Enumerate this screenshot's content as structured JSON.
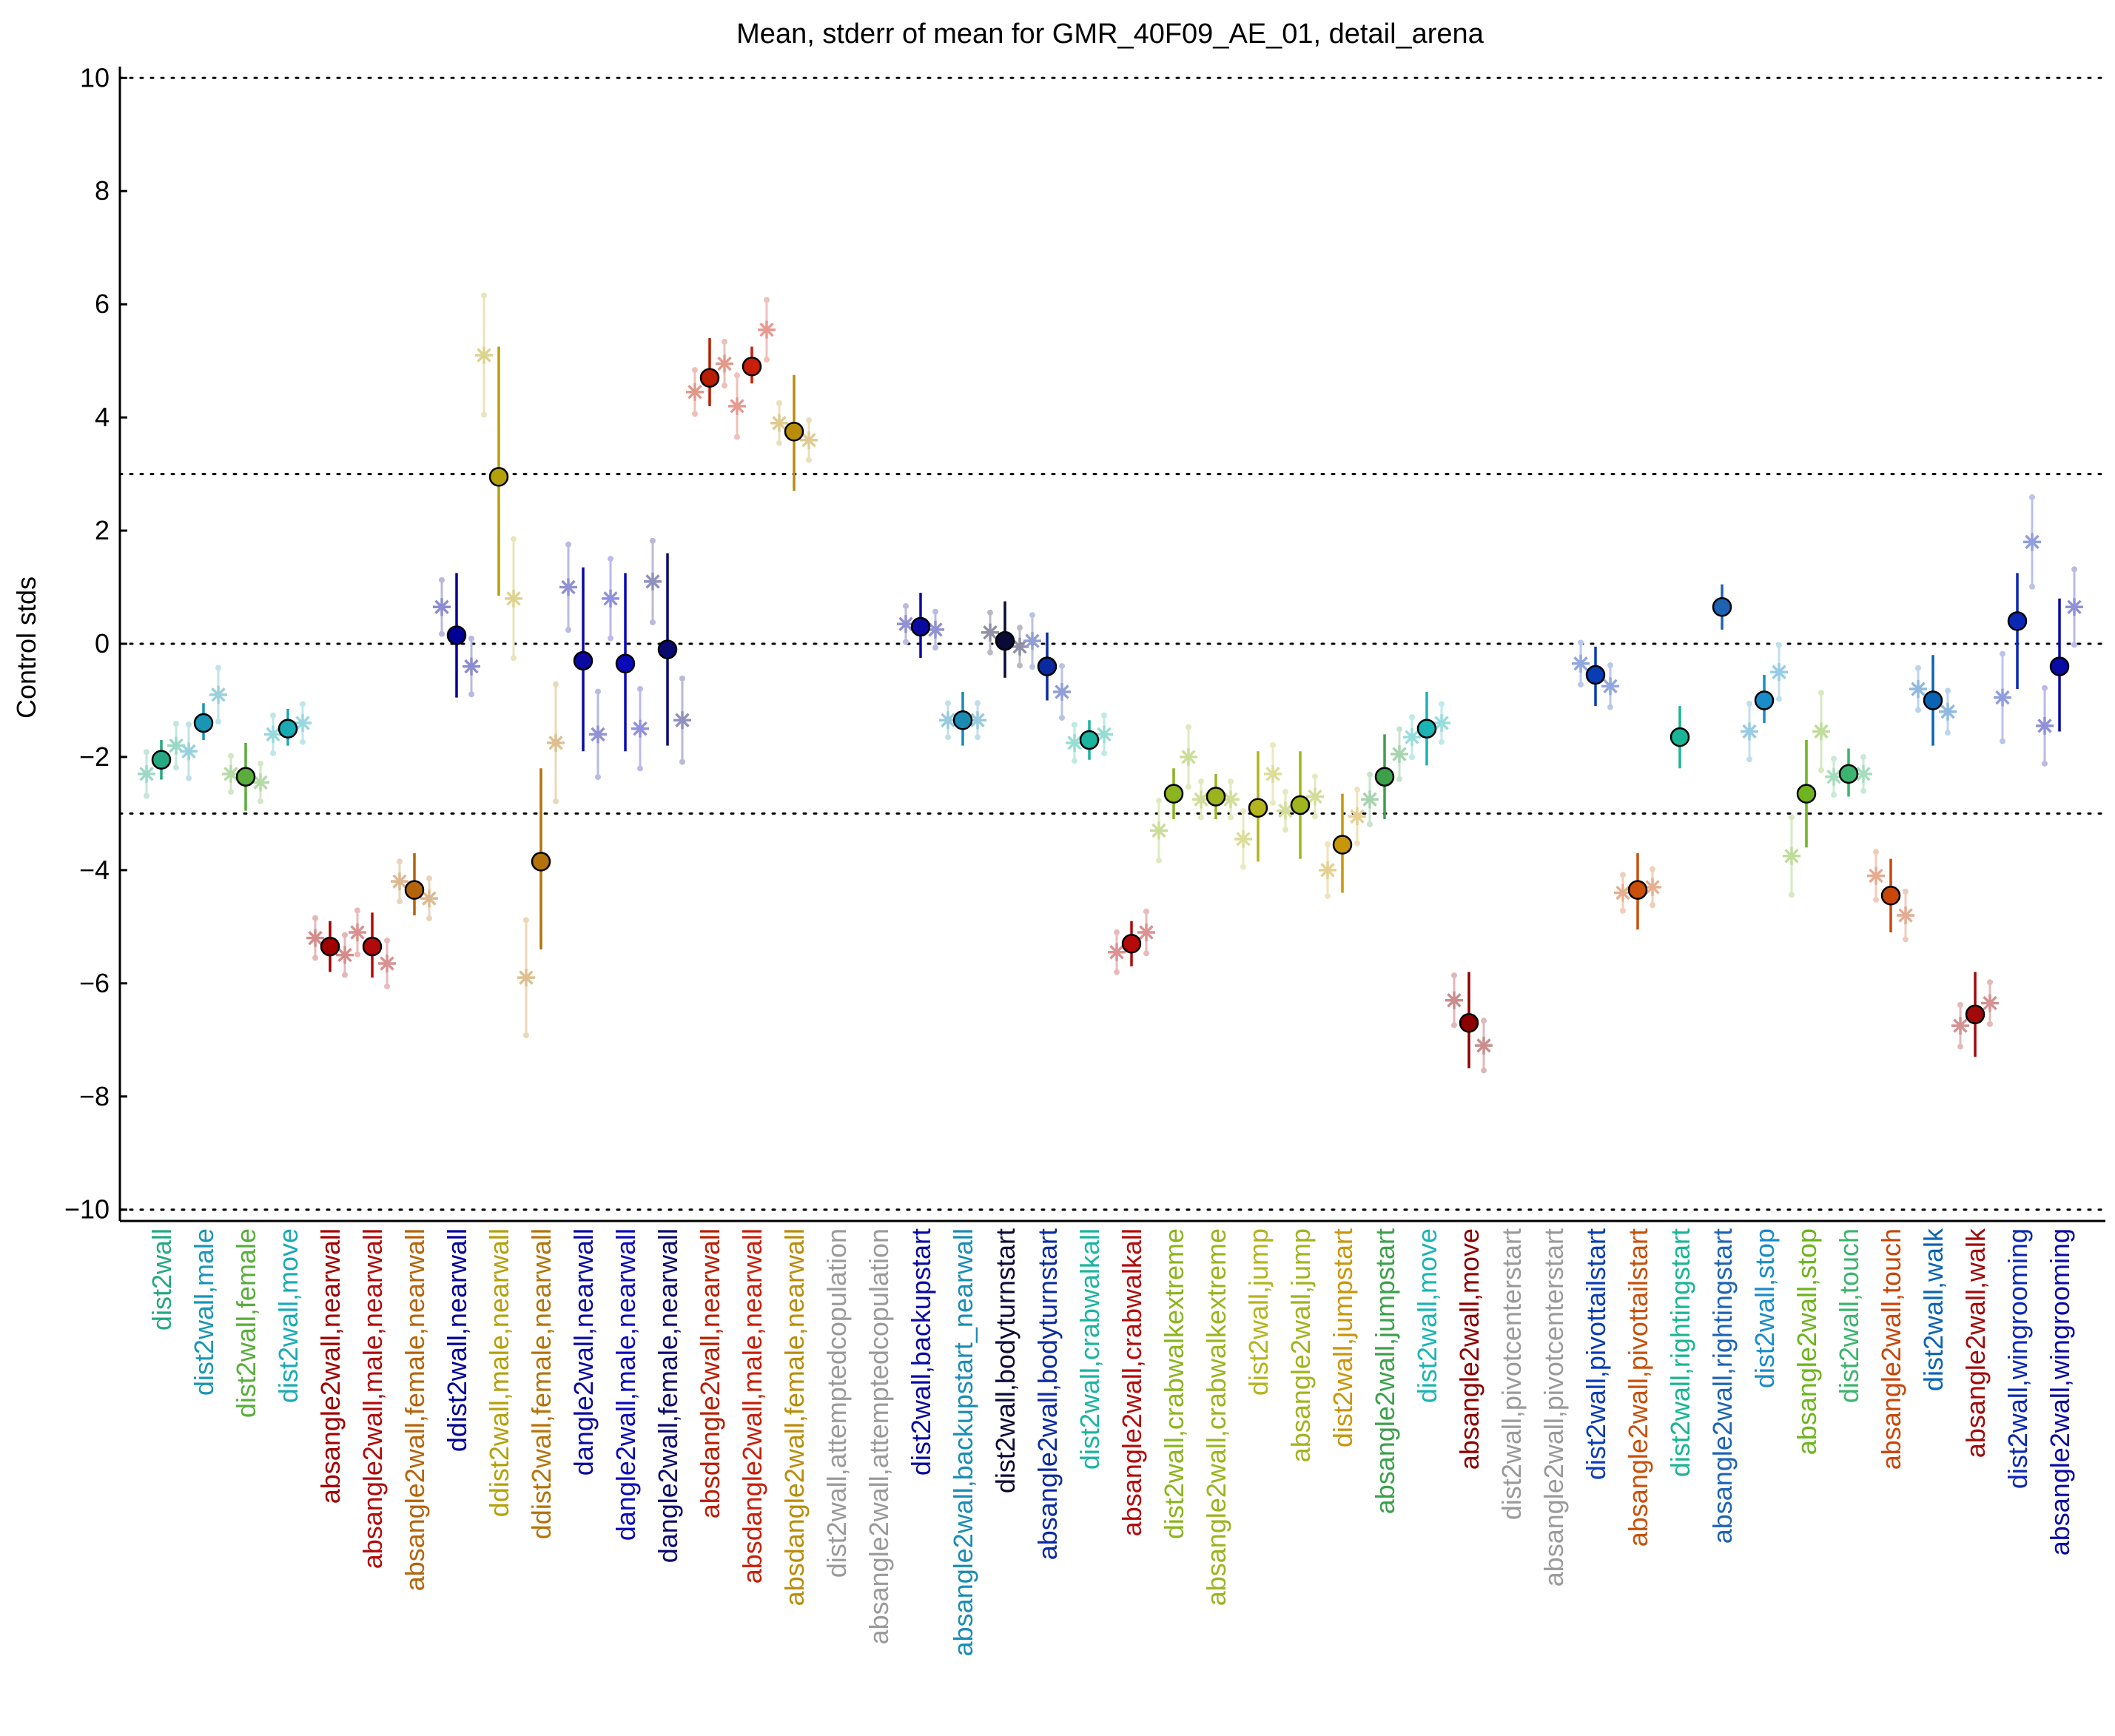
{
  "chart_data": {
    "type": "scatter",
    "title": "Mean, stderr of mean for GMR_40F09_AE_01, detail_arena",
    "xlabel": "",
    "ylabel": "Control stds",
    "ylim": [
      -10.2,
      10.2
    ],
    "yticks": [
      -10,
      -8,
      -6,
      -4,
      -2,
      0,
      2,
      4,
      6,
      8,
      10
    ],
    "ytick_labels": [
      "−10",
      "−8",
      "−6",
      "−4",
      "−2",
      "0",
      "2",
      "4",
      "6",
      "8",
      "10"
    ],
    "reference_lines": [
      -10,
      -3,
      0,
      3,
      10
    ],
    "grid": false,
    "legend": "none",
    "markers": {
      "mean": "circle",
      "per_sex": "asterisk",
      "per_experiment": "dot"
    },
    "categories": [
      "dist2wall",
      "dist2wall,male",
      "dist2wall,female",
      "dist2wall,move",
      "absangle2wall,nearwall",
      "absangle2wall,male,nearwall",
      "absangle2wall,female,nearwall",
      "ddist2wall,nearwall",
      "ddist2wall,male,nearwall",
      "ddist2wall,female,nearwall",
      "dangle2wall,nearwall",
      "dangle2wall,male,nearwall",
      "dangle2wall,female,nearwall",
      "absdangle2wall,nearwall",
      "absdangle2wall,male,nearwall",
      "absdangle2wall,female,nearwall",
      "dist2wall,attemptedcopulation",
      "absangle2wall,attemptedcopulation",
      "dist2wall,backupstart",
      "absangle2wall,backupstart_nearwall",
      "dist2wall,bodyturnstart",
      "absangle2wall,bodyturnstart",
      "dist2wall,crabwalkall",
      "absangle2wall,crabwalkall",
      "dist2wall,crabwalkextreme",
      "absangle2wall,crabwalkextreme",
      "dist2wall,jump",
      "absangle2wall,jump",
      "dist2wall,jumpstart",
      "absangle2wall,jumpstart",
      "dist2wall,move",
      "absangle2wall,move",
      "dist2wall,pivotcenterstart",
      "absangle2wall,pivotcenterstart",
      "dist2wall,pivottailstart",
      "absangle2wall,pivottailstart",
      "dist2wall,rightingstart",
      "absangle2wall,rightingstart",
      "dist2wall,stop",
      "absangle2wall,stop",
      "dist2wall,touch",
      "absangle2wall,touch",
      "dist2wall,walk",
      "absangle2wall,walk",
      "dist2wall,wingrooming",
      "absangle2wall,wingrooming"
    ],
    "colors": [
      "#26a882",
      "#1a96b4",
      "#5aad3c",
      "#1aaab4",
      "#a00000",
      "#b00a0a",
      "#b4640a",
      "#000096",
      "#b4a00a",
      "#b4730a",
      "#0a0aa0",
      "#0a0ab9",
      "#0a0a6e",
      "#b91e00",
      "#c81e0a",
      "#b98c0a",
      "#9a9a9a",
      "#9a9a9a",
      "#0a0aa0",
      "#1a8cb4",
      "#0a0a37",
      "#0a2aa0",
      "#1ab4a0",
      "#b40a0a",
      "#8cb41e",
      "#9bb41e",
      "#b4b41e",
      "#a0b41e",
      "#c8960a",
      "#3ca04b",
      "#1ab4b4",
      "#8c0000",
      "#9a9a9a",
      "#9a9a9a",
      "#0a3cb4",
      "#c8500a",
      "#1ab496",
      "#1e64b4",
      "#1a8cc8",
      "#6eb41e",
      "#3cb46e",
      "#c8460a",
      "#0a64b4",
      "#a00a0a",
      "#0a28b4",
      "#0a0aa5"
    ],
    "series": [
      {
        "name": "mean",
        "values": [
          -2.05,
          -1.4,
          -2.35,
          -1.5,
          -5.35,
          -5.35,
          -4.35,
          0.15,
          2.95,
          -3.85,
          -0.3,
          -0.35,
          -0.1,
          4.7,
          4.9,
          3.75,
          null,
          null,
          0.3,
          -1.35,
          0.05,
          -0.4,
          -1.7,
          -5.3,
          -2.65,
          -2.7,
          -2.9,
          -2.85,
          -3.55,
          -2.35,
          -1.5,
          -6.7,
          null,
          null,
          -0.55,
          -4.35,
          -1.65,
          0.65,
          -1.0,
          -2.65,
          -2.3,
          -4.45,
          -1.0,
          -6.55,
          0.4,
          -0.4
        ]
      },
      {
        "name": "stderr_low",
        "values": [
          -2.4,
          -1.7,
          -2.95,
          -1.8,
          -5.8,
          -5.9,
          -4.8,
          -0.95,
          0.85,
          -5.4,
          -1.9,
          -1.9,
          -1.8,
          4.2,
          4.6,
          2.7,
          null,
          null,
          -0.25,
          -1.8,
          -0.6,
          -1.0,
          -2.05,
          -5.7,
          -3.1,
          -3.1,
          -3.85,
          -3.8,
          -4.4,
          -3.1,
          -2.15,
          -7.5,
          null,
          null,
          -1.1,
          -5.05,
          -2.2,
          0.25,
          -1.4,
          -3.6,
          -2.7,
          -5.1,
          -1.8,
          -7.3,
          -0.8,
          -1.55
        ]
      },
      {
        "name": "stderr_high",
        "values": [
          -1.7,
          -1.05,
          -1.75,
          -1.15,
          -4.9,
          -4.75,
          -3.7,
          1.25,
          5.25,
          -2.2,
          1.35,
          1.25,
          1.6,
          5.4,
          5.25,
          4.75,
          null,
          null,
          0.9,
          -0.85,
          0.75,
          0.2,
          -1.35,
          -4.9,
          -2.2,
          -2.3,
          -1.9,
          -1.9,
          -2.65,
          -1.6,
          -0.85,
          -5.8,
          null,
          null,
          -0.05,
          -3.7,
          -1.1,
          1.05,
          -0.55,
          -1.7,
          -1.85,
          -3.8,
          -0.2,
          -5.8,
          1.25,
          0.8
        ]
      },
      {
        "name": "per_sex_1",
        "values": [
          -2.3,
          -1.9,
          -2.3,
          -1.6,
          -5.2,
          -5.1,
          -4.2,
          0.65,
          5.1,
          -5.9,
          1.0,
          0.8,
          1.1,
          4.45,
          4.2,
          3.9,
          null,
          null,
          0.35,
          -1.35,
          0.2,
          0.05,
          -1.75,
          -5.45,
          -3.3,
          -2.75,
          -3.45,
          -2.95,
          -4.0,
          -2.75,
          -1.65,
          -6.3,
          null,
          null,
          -0.35,
          -4.4,
          null,
          null,
          -1.55,
          -3.75,
          -2.35,
          -4.1,
          -0.8,
          -6.75,
          -0.95,
          -1.45
        ]
      },
      {
        "name": "per_sex_2",
        "values": [
          -1.8,
          -0.9,
          -2.45,
          -1.4,
          -5.5,
          -5.65,
          -4.5,
          -0.4,
          0.8,
          -1.75,
          -1.6,
          -1.5,
          -1.35,
          4.95,
          5.55,
          3.6,
          null,
          null,
          0.25,
          -1.35,
          -0.05,
          -0.85,
          -1.6,
          -5.1,
          -2.0,
          -2.75,
          -2.3,
          -2.7,
          -3.05,
          -1.95,
          -1.4,
          -7.1,
          null,
          null,
          -0.75,
          -4.3,
          null,
          null,
          -0.5,
          -1.55,
          -2.3,
          -4.8,
          -1.2,
          -6.35,
          1.8,
          0.65
        ]
      }
    ]
  }
}
